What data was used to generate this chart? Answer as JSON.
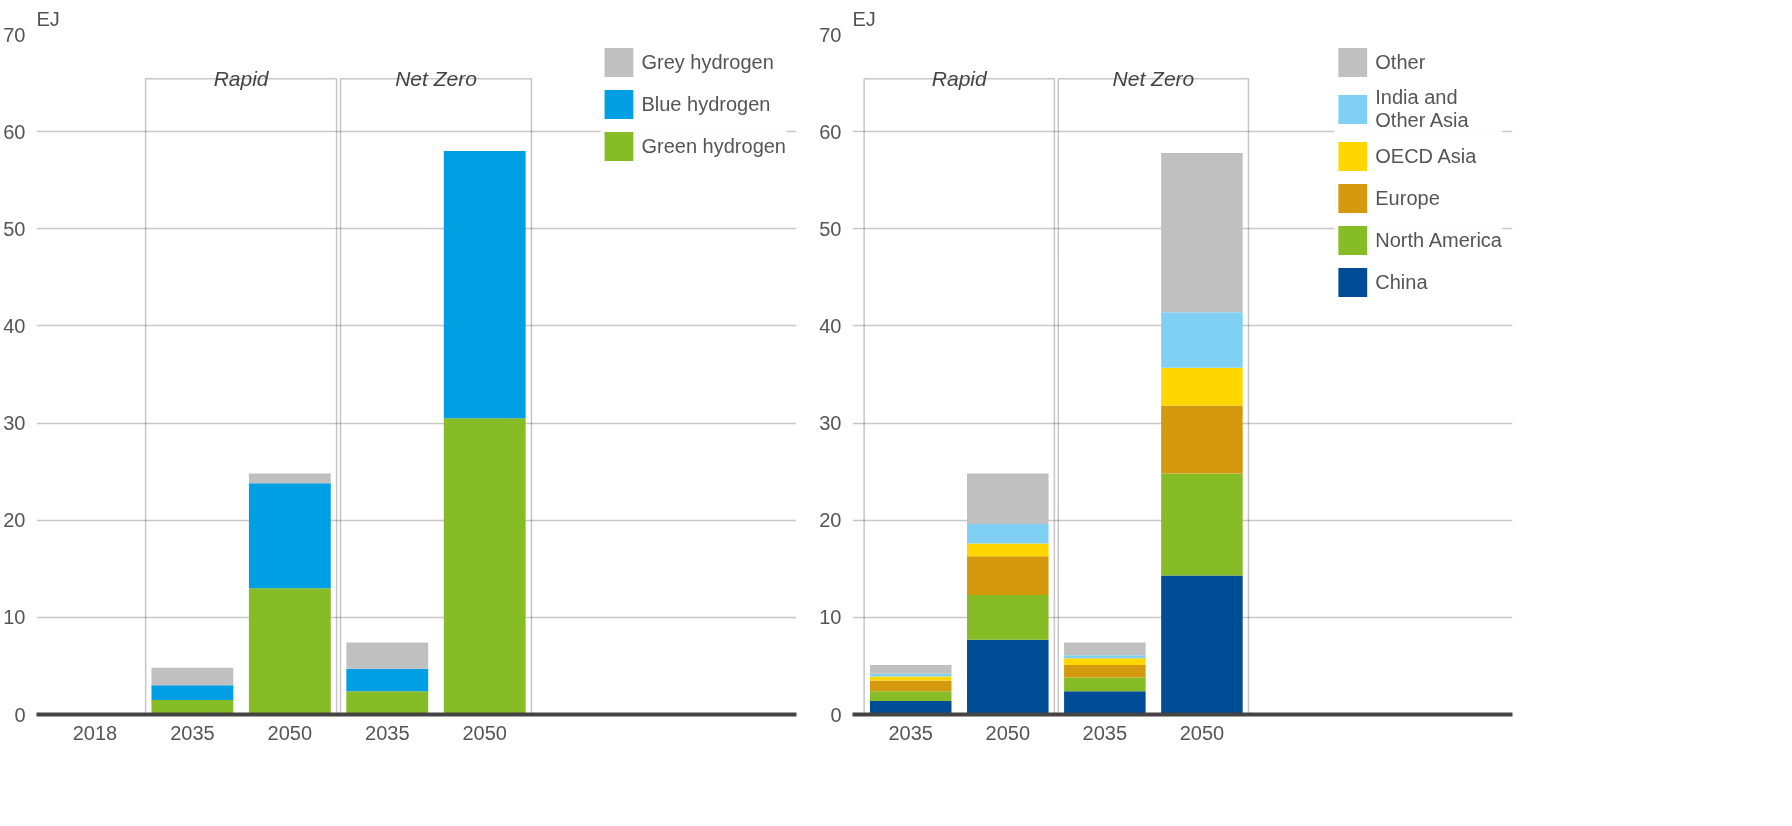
{
  "chart_data": [
    {
      "type": "bar",
      "stacked": true,
      "ylabel": "EJ",
      "categories": [
        "2018",
        "2035",
        "2050",
        "2035",
        "2050"
      ],
      "ylim": [
        0,
        70
      ],
      "yticks": [
        0,
        10,
        20,
        30,
        40,
        50,
        60,
        70
      ],
      "grid": "y",
      "legend": "top right",
      "annotations": [
        "Rapid",
        "Net Zero"
      ],
      "series": [
        {
          "name": "Green hydrogen",
          "color": "#86bc25",
          "values": [
            0,
            1.5,
            13,
            2.4,
            30.5
          ]
        },
        {
          "name": "Blue hydrogen",
          "color": "#009fe3",
          "values": [
            0,
            1.5,
            10.8,
            2.3,
            27.5
          ]
        },
        {
          "name": "Grey hydrogen",
          "color": "#c0c0c0",
          "values": [
            0,
            1.8,
            1.0,
            2.7,
            0
          ]
        }
      ]
    },
    {
      "type": "bar",
      "stacked": true,
      "ylabel": "EJ",
      "categories": [
        "2035",
        "2050",
        "2035",
        "2050"
      ],
      "ylim": [
        0,
        70
      ],
      "yticks": [
        0,
        10,
        20,
        30,
        40,
        50,
        60,
        70
      ],
      "grid": "y",
      "legend": "top right",
      "annotations": [
        "Rapid",
        "Net Zero"
      ],
      "series": [
        {
          "name": "China",
          "color": "#004c97",
          "values": [
            1.4,
            7.7,
            2.4,
            14.3
          ]
        },
        {
          "name": "North America",
          "color": "#86bc25",
          "values": [
            1.0,
            4.6,
            1.4,
            10.5
          ]
        },
        {
          "name": "Europe",
          "color": "#d4990c",
          "values": [
            1.1,
            4.0,
            1.3,
            7.0
          ]
        },
        {
          "name": "OECD Asia",
          "color": "#ffd700",
          "values": [
            0.4,
            1.3,
            0.7,
            3.9
          ]
        },
        {
          "name": "India and\nOther Asia",
          "color": "#80d0f3",
          "values": [
            0.3,
            2.0,
            0.3,
            5.7
          ]
        },
        {
          "name": "Other",
          "color": "#c0c0c0",
          "values": [
            0.9,
            5.2,
            1.3,
            16.4
          ]
        }
      ]
    }
  ]
}
